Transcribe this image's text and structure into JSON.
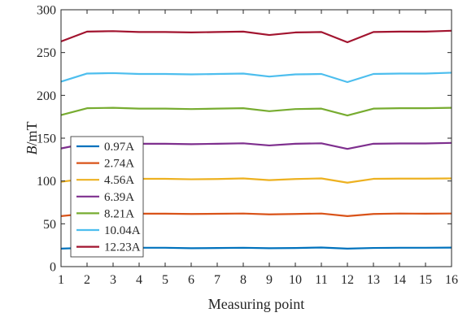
{
  "chart_data": {
    "type": "line",
    "title": "",
    "xlabel": "Measuring point",
    "ylabel_italic": "B",
    "ylabel_unit": "/mT",
    "xlim": [
      1,
      16
    ],
    "ylim": [
      0,
      300
    ],
    "xticks": [
      1,
      2,
      3,
      4,
      5,
      6,
      7,
      8,
      9,
      10,
      11,
      12,
      13,
      14,
      15,
      16
    ],
    "yticks": [
      0,
      50,
      100,
      150,
      200,
      250,
      300
    ],
    "grid": false,
    "legend_position": "bottom-left",
    "x": [
      1,
      2,
      3,
      4,
      5,
      6,
      7,
      8,
      9,
      10,
      11,
      12,
      13,
      14,
      15,
      16
    ],
    "series": [
      {
        "name": "0.97A",
        "color": "#0072BD",
        "values": [
          21,
          22,
          22,
          22,
          22,
          21.5,
          21.7,
          22,
          21.5,
          21.7,
          22.3,
          21,
          21.8,
          22,
          22,
          22.2
        ]
      },
      {
        "name": "2.74A",
        "color": "#D95319",
        "values": [
          59,
          62,
          62,
          61.8,
          61.8,
          61.5,
          61.7,
          62,
          61,
          61.5,
          62,
          59,
          61.5,
          62,
          61.8,
          62
        ]
      },
      {
        "name": "4.56A",
        "color": "#EDB120",
        "values": [
          99,
          103,
          103,
          102.5,
          102.5,
          102,
          102.3,
          103,
          101,
          102.3,
          103,
          98,
          102.5,
          102.8,
          102.8,
          103
        ]
      },
      {
        "name": "6.39A",
        "color": "#7E2F8E",
        "values": [
          138,
          144,
          144,
          143.5,
          143.5,
          143,
          143.5,
          144,
          141.5,
          143.5,
          144,
          137.5,
          143.5,
          143.8,
          143.8,
          144.5
        ]
      },
      {
        "name": "8.21A",
        "color": "#77AC30",
        "values": [
          177,
          185,
          185.5,
          184.5,
          184.5,
          184,
          184.5,
          185,
          181.5,
          184,
          184.5,
          176.5,
          184.5,
          185,
          185,
          185.5
        ]
      },
      {
        "name": "10.04A",
        "color": "#4DBEEE",
        "values": [
          216,
          225.5,
          226,
          225,
          225,
          224.5,
          225,
          225.5,
          222,
          224.5,
          225,
          215.5,
          225,
          225.5,
          225.5,
          226.5
        ]
      },
      {
        "name": "12.23A",
        "color": "#A2142F",
        "values": [
          263,
          274.5,
          275,
          274,
          274,
          273.5,
          274,
          274.5,
          270.5,
          273.5,
          274,
          262,
          274,
          274.5,
          274.5,
          275.5
        ]
      }
    ]
  }
}
